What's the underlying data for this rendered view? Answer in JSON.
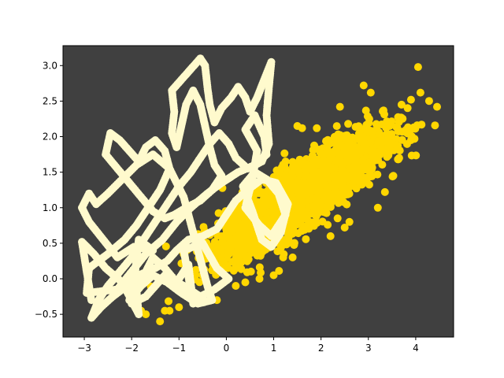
{
  "chart_data": {
    "type": "scatter",
    "title": "",
    "xlabel": "",
    "ylabel": "",
    "xlim": [
      -3.45,
      4.8
    ],
    "ylim": [
      -0.82,
      3.28
    ],
    "x_ticks": [
      -3,
      -2,
      -1,
      0,
      1,
      2,
      3,
      4
    ],
    "x_tick_labels": [
      "−3",
      "−2",
      "−1",
      "0",
      "1",
      "2",
      "3",
      "4"
    ],
    "y_ticks": [
      -0.5,
      0.0,
      0.5,
      1.0,
      1.5,
      2.0,
      2.5,
      3.0
    ],
    "y_tick_labels": [
      "−0.5",
      "0.0",
      "0.5",
      "1.0",
      "1.5",
      "2.0",
      "2.5",
      "3.0"
    ],
    "grid": false,
    "legend": "none",
    "background_color": "#404040",
    "series": [
      {
        "kind": "scatter-cloud",
        "color": "#FFD700",
        "description_of_distribution": "correlated gaussian cloud",
        "center": [
          1.6,
          1.2
        ],
        "x_range": [
          -1.9,
          4.5
        ],
        "y_range": [
          -0.62,
          2.98
        ],
        "outliers": [
          [
            4.05,
            2.98
          ],
          [
            4.45,
            2.42
          ],
          [
            4.1,
            2.62
          ],
          [
            3.9,
            2.52
          ],
          [
            3.7,
            2.45
          ],
          [
            2.9,
            2.72
          ],
          [
            3.05,
            2.62
          ],
          [
            2.4,
            2.42
          ],
          [
            1.5,
            2.15
          ],
          [
            1.6,
            2.12
          ],
          [
            3.35,
            1.22
          ],
          [
            3.2,
            1.0
          ],
          [
            3.65,
            1.7
          ],
          [
            3.8,
            2.1
          ],
          [
            3.9,
            1.95
          ],
          [
            2.2,
            0.6
          ],
          [
            2.5,
            0.72
          ],
          [
            2.35,
            0.85
          ],
          [
            2.6,
            0.8
          ],
          [
            1.0,
            0.05
          ],
          [
            1.2,
            0.3
          ],
          [
            1.4,
            0.3
          ],
          [
            0.7,
            0.0
          ],
          [
            0.4,
            -0.05
          ],
          [
            0.2,
            -0.1
          ],
          [
            -0.2,
            -0.3
          ],
          [
            -1.0,
            -0.4
          ],
          [
            -1.2,
            -0.45
          ],
          [
            -1.4,
            -0.6
          ],
          [
            -1.7,
            -0.5
          ],
          [
            -1.8,
            -0.45
          ],
          [
            -1.3,
            -0.45
          ],
          [
            -0.7,
            -0.3
          ]
        ]
      },
      {
        "kind": "scatter-path",
        "color": "#FFFACD",
        "path_points": [
          [
            -2.85,
            -0.3
          ],
          [
            -2.9,
            -0.1
          ],
          [
            -3.05,
            0.52
          ],
          [
            -2.8,
            0.35
          ],
          [
            -2.55,
            0.15
          ],
          [
            -2.2,
            -0.05
          ],
          [
            -1.85,
            -0.5
          ],
          [
            -1.9,
            -0.15
          ],
          [
            -1.7,
            0.1
          ],
          [
            -1.55,
            0.3
          ],
          [
            -1.3,
            0.15
          ],
          [
            -1.05,
            -0.05
          ],
          [
            -0.8,
            0.2
          ],
          [
            -0.7,
            -0.35
          ],
          [
            -0.9,
            0.4
          ],
          [
            -0.5,
            0.5
          ],
          [
            -0.2,
            0.15
          ],
          [
            0.05,
            0.0
          ],
          [
            -0.25,
            -0.15
          ],
          [
            -0.55,
            -0.25
          ],
          [
            -0.9,
            -0.1
          ],
          [
            -1.3,
            0.05
          ],
          [
            -1.7,
            -0.25
          ],
          [
            -2.0,
            -0.35
          ],
          [
            -1.85,
            0.55
          ],
          [
            -1.55,
            0.4
          ],
          [
            -1.95,
            0.45
          ],
          [
            -2.3,
            0.3
          ],
          [
            -2.6,
            0.55
          ],
          [
            -2.9,
            0.8
          ],
          [
            -3.05,
            1.0
          ],
          [
            -2.9,
            1.2
          ],
          [
            -2.75,
            1.05
          ],
          [
            -2.5,
            1.2
          ],
          [
            -2.2,
            1.4
          ],
          [
            -1.9,
            1.6
          ],
          [
            -1.55,
            1.75
          ],
          [
            -1.2,
            1.55
          ],
          [
            -1.4,
            1.25
          ],
          [
            -1.65,
            1.0
          ],
          [
            -1.9,
            0.75
          ],
          [
            -2.15,
            0.55
          ],
          [
            -2.5,
            0.35
          ],
          [
            -2.9,
            0.15
          ],
          [
            -2.95,
            -0.2
          ],
          [
            -2.3,
            -0.15
          ],
          [
            -2.0,
            0.1
          ],
          [
            -1.7,
            0.35
          ],
          [
            -1.35,
            0.55
          ],
          [
            -1.05,
            0.8
          ],
          [
            -0.75,
            1.0
          ],
          [
            -0.4,
            1.2
          ],
          [
            -0.1,
            1.35
          ],
          [
            0.25,
            1.5
          ],
          [
            0.6,
            1.6
          ],
          [
            0.85,
            1.75
          ],
          [
            0.8,
            2.0
          ],
          [
            0.6,
            2.3
          ],
          [
            0.4,
            2.1
          ],
          [
            0.65,
            1.8
          ],
          [
            0.55,
            1.4
          ],
          [
            0.4,
            1.0
          ],
          [
            0.7,
            0.75
          ],
          [
            0.95,
            0.6
          ],
          [
            1.25,
            0.9
          ],
          [
            1.1,
            1.2
          ],
          [
            0.85,
            1.4
          ],
          [
            0.6,
            1.5
          ],
          [
            0.35,
            1.3
          ],
          [
            0.55,
            0.95
          ],
          [
            0.75,
            0.55
          ],
          [
            0.95,
            0.45
          ],
          [
            1.15,
            0.65
          ],
          [
            1.3,
            1.05
          ],
          [
            1.05,
            1.35
          ],
          [
            0.75,
            1.4
          ],
          [
            0.45,
            1.25
          ],
          [
            0.2,
            1.1
          ],
          [
            0.0,
            0.9
          ],
          [
            -0.2,
            0.7
          ],
          [
            -0.5,
            0.6
          ],
          [
            -0.8,
            0.55
          ],
          [
            -1.05,
            0.4
          ],
          [
            -1.25,
            0.25
          ],
          [
            -1.5,
            0.15
          ],
          [
            -1.85,
            0.05
          ],
          [
            -2.1,
            -0.1
          ],
          [
            -2.4,
            -0.25
          ],
          [
            -2.65,
            -0.4
          ],
          [
            -2.85,
            -0.55
          ],
          [
            -2.7,
            -0.3
          ],
          [
            -2.5,
            -0.1
          ],
          [
            -2.25,
            0.1
          ],
          [
            -2.0,
            0.3
          ],
          [
            -1.8,
            0.5
          ],
          [
            -1.6,
            0.7
          ],
          [
            -1.4,
            0.9
          ],
          [
            -1.2,
            1.1
          ],
          [
            -1.0,
            1.3
          ],
          [
            -0.75,
            1.5
          ],
          [
            -0.55,
            1.7
          ],
          [
            -0.35,
            1.9
          ],
          [
            -0.15,
            2.05
          ],
          [
            0.05,
            1.9
          ],
          [
            0.2,
            1.7
          ],
          [
            0.45,
            1.55
          ],
          [
            0.75,
            1.65
          ],
          [
            0.9,
            1.9
          ],
          [
            0.85,
            2.3
          ],
          [
            0.9,
            2.7
          ],
          [
            0.95,
            3.05
          ],
          [
            0.8,
            2.8
          ],
          [
            0.65,
            2.55
          ],
          [
            0.5,
            2.35
          ],
          [
            0.4,
            2.55
          ],
          [
            0.25,
            2.7
          ],
          [
            0.1,
            2.55
          ],
          [
            -0.1,
            2.4
          ],
          [
            -0.25,
            2.2
          ],
          [
            -0.35,
            2.45
          ],
          [
            -0.4,
            2.7
          ],
          [
            -0.45,
            3.0
          ],
          [
            -0.55,
            3.1
          ],
          [
            -0.75,
            2.95
          ],
          [
            -0.95,
            2.8
          ],
          [
            -1.15,
            2.65
          ],
          [
            -1.1,
            2.35
          ],
          [
            -1.15,
            2.05
          ],
          [
            -1.05,
            1.85
          ],
          [
            -0.95,
            2.15
          ],
          [
            -0.85,
            2.45
          ],
          [
            -0.7,
            2.65
          ],
          [
            -0.55,
            2.45
          ],
          [
            -0.45,
            2.15
          ],
          [
            -0.35,
            1.85
          ],
          [
            -0.25,
            1.6
          ],
          [
            -0.1,
            1.45
          ],
          [
            -0.3,
            1.25
          ],
          [
            -0.55,
            1.1
          ],
          [
            -0.85,
            1.0
          ],
          [
            -1.1,
            0.9
          ],
          [
            -1.3,
            0.85
          ],
          [
            -1.55,
            0.95
          ],
          [
            -1.8,
            1.15
          ],
          [
            -2.05,
            1.35
          ],
          [
            -2.3,
            1.55
          ],
          [
            -2.55,
            1.75
          ],
          [
            -2.45,
            2.05
          ],
          [
            -2.25,
            1.95
          ],
          [
            -2.05,
            1.8
          ],
          [
            -1.85,
            1.65
          ],
          [
            -1.7,
            1.85
          ],
          [
            -1.5,
            1.95
          ],
          [
            -1.3,
            1.8
          ],
          [
            -1.2,
            1.55
          ],
          [
            -1.05,
            1.35
          ],
          [
            -0.9,
            1.15
          ],
          [
            -0.8,
            0.9
          ],
          [
            -0.7,
            0.65
          ],
          [
            -0.6,
            0.4
          ],
          [
            -0.5,
            0.15
          ],
          [
            -0.4,
            -0.1
          ],
          [
            -0.3,
            -0.3
          ],
          [
            -0.6,
            -0.35
          ],
          [
            -0.95,
            -0.2
          ],
          [
            -1.25,
            -0.05
          ],
          [
            -1.55,
            0.05
          ],
          [
            -1.8,
            -0.1
          ],
          [
            -2.05,
            -0.3
          ]
        ]
      }
    ]
  }
}
